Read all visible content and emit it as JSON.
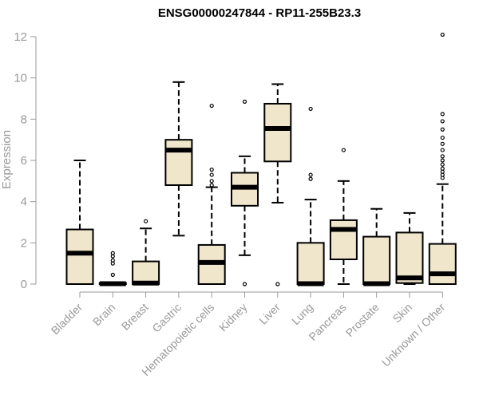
{
  "chart_data": {
    "type": "boxplot",
    "title": "ENSG00000247844 - RP11-255B23.3",
    "xlabel": "",
    "ylabel": "Expression",
    "ylim": [
      0,
      12
    ],
    "yticks": [
      0,
      2,
      4,
      6,
      8,
      10,
      12
    ],
    "box_color": "#efe6cb",
    "axis_color": "#999999",
    "categories": [
      "Bladder",
      "Brain",
      "Breast",
      "Gastric",
      "Hematopoietic cells",
      "Kidney",
      "Liver",
      "Lung",
      "Pancreas",
      "Prostate",
      "Skin",
      "Unknown / Other"
    ],
    "boxes": [
      {
        "min": 0,
        "q1": 0,
        "median": 1.5,
        "q3": 2.65,
        "max": 6.0,
        "outliers": []
      },
      {
        "min": 0,
        "q1": 0,
        "median": 0.02,
        "q3": 0.05,
        "max": 0.05,
        "outliers": [
          0.45,
          1.0,
          1.15,
          1.35,
          1.5
        ]
      },
      {
        "min": 0,
        "q1": 0,
        "median": 0.05,
        "q3": 1.1,
        "max": 2.7,
        "outliers": [
          3.05
        ]
      },
      {
        "min": 2.35,
        "q1": 4.8,
        "median": 6.5,
        "q3": 7.0,
        "max": 9.8,
        "outliers": []
      },
      {
        "min": 0,
        "q1": 0,
        "median": 1.05,
        "q3": 1.9,
        "max": 4.7,
        "outliers": [
          4.8,
          5.0,
          5.3,
          5.55,
          8.65
        ]
      },
      {
        "min": 1.4,
        "q1": 3.8,
        "median": 4.7,
        "q3": 5.4,
        "max": 6.2,
        "outliers": [
          0,
          8.85
        ]
      },
      {
        "min": 3.95,
        "q1": 5.95,
        "median": 7.55,
        "q3": 8.75,
        "max": 9.7,
        "outliers": [
          0
        ]
      },
      {
        "min": 0,
        "q1": 0,
        "median": 0.02,
        "q3": 2.0,
        "max": 4.1,
        "outliers": [
          5.1,
          5.3,
          8.5
        ]
      },
      {
        "min": 0,
        "q1": 1.2,
        "median": 2.65,
        "q3": 3.1,
        "max": 5.0,
        "outliers": [
          6.5
        ]
      },
      {
        "min": 0,
        "q1": 0,
        "median": 0.02,
        "q3": 2.3,
        "max": 3.65,
        "outliers": []
      },
      {
        "min": 0,
        "q1": 0.05,
        "median": 0.3,
        "q3": 2.5,
        "max": 3.45,
        "outliers": []
      },
      {
        "min": 0,
        "q1": 0,
        "median": 0.5,
        "q3": 1.95,
        "max": 4.85,
        "outliers": [
          5.15,
          5.3,
          5.45,
          5.6,
          5.8,
          6.0,
          6.2,
          6.5,
          6.8,
          7.1,
          7.5,
          7.9,
          8.25,
          12.1
        ]
      }
    ]
  }
}
